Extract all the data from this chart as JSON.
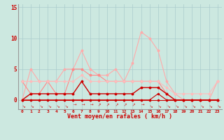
{
  "x": [
    0,
    1,
    2,
    3,
    4,
    5,
    6,
    7,
    8,
    9,
    10,
    11,
    12,
    13,
    14,
    15,
    16,
    17,
    18,
    19,
    20,
    21,
    22,
    23
  ],
  "line_gust_light": [
    0,
    5,
    3,
    3,
    3,
    5,
    5,
    8,
    5,
    4,
    4,
    5,
    3,
    6,
    11,
    10,
    8,
    3,
    1,
    0,
    0,
    0,
    0,
    3
  ],
  "line_avg_light": [
    3,
    1,
    1,
    3,
    1,
    1,
    5,
    5,
    4,
    4,
    3,
    3,
    3,
    3,
    3,
    3,
    3,
    1,
    0,
    0,
    0,
    0,
    0,
    0
  ],
  "line_flat_pink": [
    3,
    3,
    3,
    3,
    3,
    3,
    3,
    4,
    3,
    3,
    3,
    3,
    3,
    3,
    3,
    3,
    3,
    2,
    1,
    1,
    1,
    1,
    1,
    3
  ],
  "line_dark1": [
    0,
    1,
    1,
    1,
    1,
    1,
    1,
    3,
    1,
    1,
    1,
    1,
    1,
    1,
    2,
    2,
    2,
    1,
    0,
    0,
    0,
    0,
    0,
    0
  ],
  "line_dark2": [
    0,
    0,
    0,
    0,
    0,
    0,
    0,
    0,
    0,
    0,
    0,
    0,
    0,
    0,
    0,
    0,
    0,
    0,
    0,
    0,
    0,
    0,
    0,
    0
  ],
  "line_dark3": [
    0,
    0,
    0,
    0,
    0,
    0,
    0,
    0,
    0,
    0,
    0,
    0,
    0,
    0,
    0,
    0,
    1,
    0,
    0,
    0,
    0,
    0,
    0,
    0
  ],
  "bg_color": "#cce8e0",
  "grid_color": "#aacccc",
  "color_light_pink": "#ffaaaa",
  "color_medium_pink": "#ff8888",
  "color_pink_flat": "#ffbbbb",
  "color_dark_red": "#cc0000",
  "xlabel": "Vent moyen/en rafales ( km/h )",
  "yticks": [
    0,
    5,
    10,
    15
  ],
  "xlim": [
    -0.5,
    23.5
  ],
  "ylim": [
    -1.5,
    15.5
  ],
  "figwidth": 3.2,
  "figheight": 2.0,
  "dpi": 100
}
